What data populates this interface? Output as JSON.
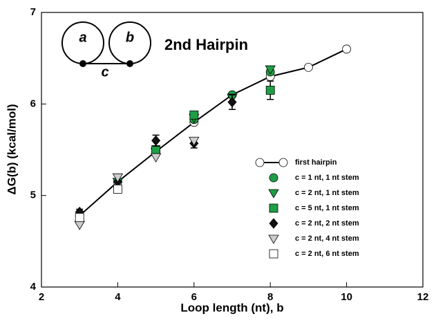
{
  "chart_data": {
    "type": "scatter",
    "xlabel": "Loop length (nt), b",
    "ylabel": "ΔG(b) (kcal/mol)",
    "annotation": "2nd Hairpin",
    "diagram_labels": [
      "a",
      "b",
      "c"
    ],
    "xlim": [
      2,
      12
    ],
    "xticks": [
      2,
      4,
      6,
      8,
      10,
      12
    ],
    "ylim": [
      4,
      7
    ],
    "yticks": [
      4,
      5,
      6,
      7
    ],
    "series": [
      {
        "name": "first hairpin",
        "color": "#ffffff",
        "marker": "circle",
        "line": true,
        "x": [
          3,
          4,
          5,
          6,
          7,
          8,
          9,
          10
        ],
        "values": [
          4.78,
          5.15,
          5.48,
          5.8,
          6.1,
          6.3,
          6.4,
          6.6
        ]
      },
      {
        "name": "c = 1 nt, 1 nt stem",
        "color": "#1f9e45",
        "marker": "circle",
        "x": [
          5,
          6,
          7,
          8
        ],
        "values": [
          5.5,
          5.83,
          6.1,
          6.35
        ]
      },
      {
        "name": "c = 2 nt, 1 nt stem",
        "color": "#1f9e45",
        "marker": "triangle-down",
        "x": [
          4,
          5,
          6,
          7,
          8
        ],
        "values": [
          5.15,
          5.48,
          5.85,
          6.07,
          6.38
        ]
      },
      {
        "name": "c = 5 nt, 1 nt stem",
        "color": "#1f9e45",
        "marker": "square",
        "x": [
          5,
          6,
          8
        ],
        "values": [
          5.5,
          5.88,
          6.15
        ],
        "errors": [
          null,
          null,
          0.1
        ]
      },
      {
        "name": "c = 2 nt, 2 nt stem",
        "color": "#111111",
        "marker": "diamond",
        "x": [
          3,
          4,
          5,
          6,
          7
        ],
        "values": [
          4.82,
          5.15,
          5.6,
          5.57,
          6.02
        ],
        "errors": [
          0.03,
          null,
          0.06,
          0.05,
          0.08
        ]
      },
      {
        "name": "c = 2 nt, 4 nt stem",
        "color": "#cccccc",
        "marker": "triangle-down",
        "x": [
          3,
          4,
          5,
          6
        ],
        "values": [
          4.68,
          5.2,
          5.42,
          5.6
        ]
      },
      {
        "name": "c = 2 nt, 6 nt stem",
        "color": "#ffffff",
        "marker": "square",
        "x": [
          3,
          4
        ],
        "values": [
          4.76,
          5.07
        ]
      }
    ]
  }
}
